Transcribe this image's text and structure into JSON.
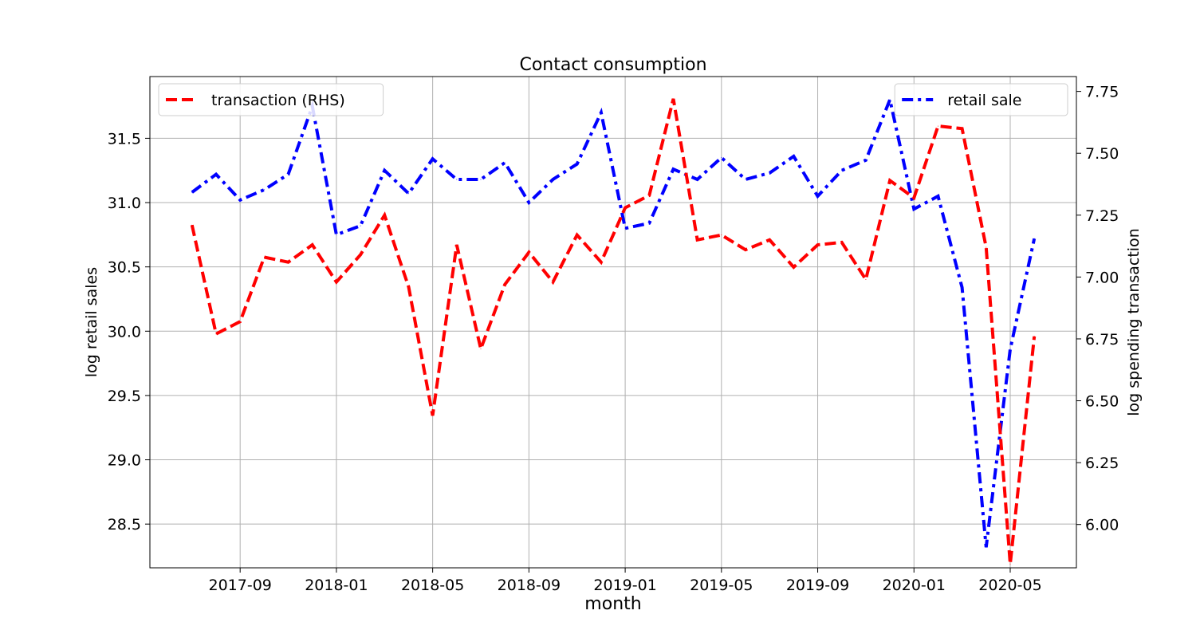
{
  "chart_data": {
    "type": "line",
    "title": "Contact consumption",
    "xlabel": "month",
    "ylabel_left": "log retail sales",
    "ylabel_right": "log spending transaction",
    "x": [
      "2017-07",
      "2017-08",
      "2017-09",
      "2017-10",
      "2017-11",
      "2017-12",
      "2018-01",
      "2018-02",
      "2018-03",
      "2018-04",
      "2018-05",
      "2018-06",
      "2018-07",
      "2018-08",
      "2018-09",
      "2018-10",
      "2018-11",
      "2018-12",
      "2019-01",
      "2019-02",
      "2019-03",
      "2019-04",
      "2019-05",
      "2019-06",
      "2019-07",
      "2019-08",
      "2019-09",
      "2019-10",
      "2019-11",
      "2019-12",
      "2020-01",
      "2020-02",
      "2020-03",
      "2020-04",
      "2020-05",
      "2020-06"
    ],
    "x_ticks": [
      "2017-09",
      "2018-01",
      "2018-05",
      "2018-09",
      "2019-01",
      "2019-05",
      "2019-09",
      "2020-01",
      "2020-05"
    ],
    "left_axis": {
      "ylim": [
        28.16,
        31.98
      ],
      "ticks": [
        "28.5",
        "29.0",
        "29.5",
        "30.0",
        "30.5",
        "31.0",
        "31.5"
      ]
    },
    "right_axis": {
      "ylim": [
        5.825,
        7.81
      ],
      "ticks": [
        "6.00",
        "6.25",
        "6.50",
        "6.75",
        "7.00",
        "7.25",
        "7.50",
        "7.75"
      ]
    },
    "grid": true,
    "series": [
      {
        "name": "retail sale",
        "axis": "left",
        "color": "#0000ff",
        "linestyle": "dashdot",
        "legend_position": "upper right",
        "values": [
          31.08,
          31.22,
          31.02,
          31.1,
          31.22,
          31.75,
          30.75,
          30.82,
          31.25,
          31.07,
          31.34,
          31.18,
          31.18,
          31.31,
          31.0,
          31.18,
          31.3,
          31.7,
          30.8,
          30.84,
          31.26,
          31.18,
          31.35,
          31.18,
          31.23,
          31.36,
          31.05,
          31.25,
          31.33,
          31.8,
          30.95,
          31.05,
          30.34,
          28.32,
          29.86,
          30.72
        ]
      },
      {
        "name": "transaction (RHS)",
        "axis": "right",
        "color": "#ff0000",
        "linestyle": "dashed",
        "legend_position": "upper left",
        "values": [
          7.21,
          6.77,
          6.82,
          7.08,
          7.06,
          7.13,
          6.98,
          7.09,
          7.25,
          6.96,
          6.44,
          7.13,
          6.71,
          6.97,
          7.1,
          6.98,
          7.17,
          7.06,
          7.28,
          7.33,
          7.72,
          7.15,
          7.17,
          7.11,
          7.15,
          7.04,
          7.13,
          7.14,
          6.99,
          7.39,
          7.32,
          7.61,
          7.6,
          7.12,
          5.84,
          6.76
        ]
      }
    ]
  }
}
